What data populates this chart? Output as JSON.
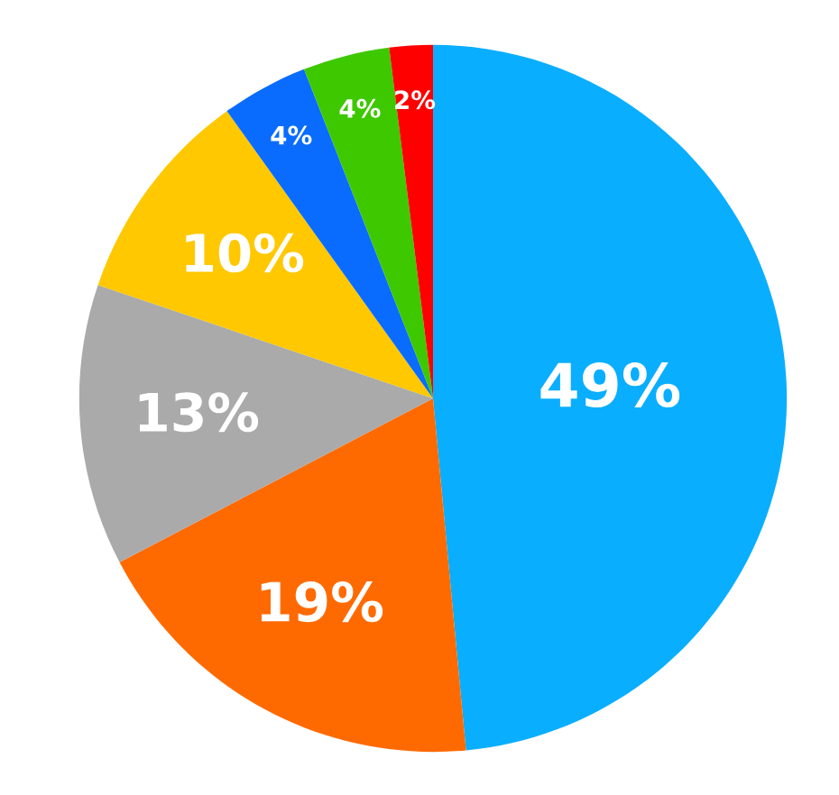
{
  "chart_data": {
    "type": "pie",
    "categories": [
      null,
      null,
      null,
      null,
      null,
      null,
      null
    ],
    "values": [
      49,
      19,
      13,
      10,
      4,
      4,
      2
    ],
    "colors": [
      "#0aaeff",
      "#ff6a00",
      "#aaaaaa",
      "#ffc800",
      "#0a6cff",
      "#3ec800",
      "#ff0000"
    ],
    "value_labels": [
      "49%",
      "19%",
      "13%",
      "10%",
      "4%",
      "4%",
      "2%"
    ]
  }
}
